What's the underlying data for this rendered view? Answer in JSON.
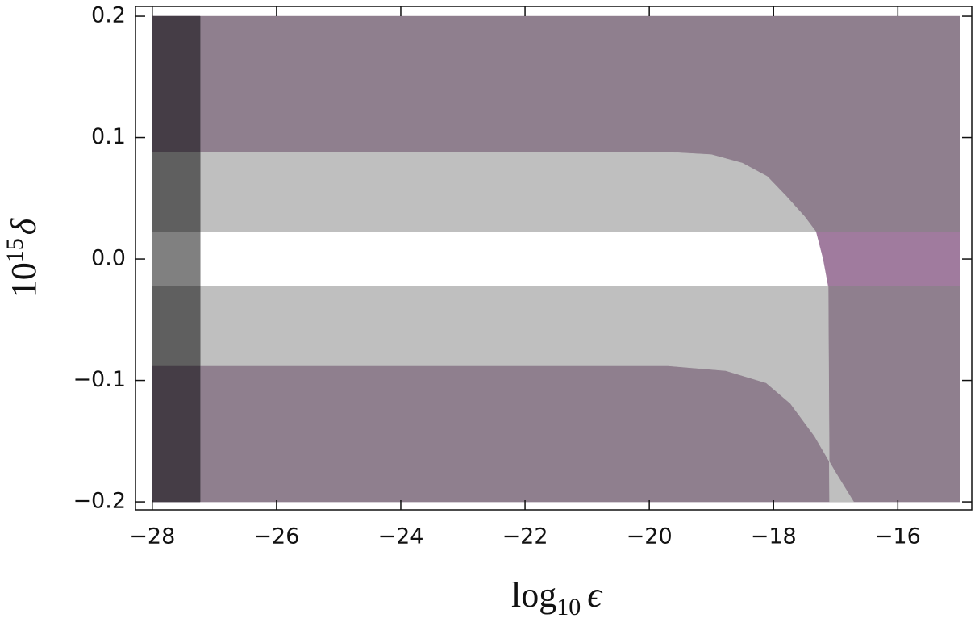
{
  "chart_data": {
    "type": "region",
    "xlabel": [
      "log",
      "10",
      "ϵ"
    ],
    "ylabel": [
      "10",
      "15",
      "δ"
    ],
    "xlim": [
      -28.27,
      -14.81
    ],
    "ylim": [
      -0.2066,
      0.208
    ],
    "xticks": [
      {
        "value": -28,
        "label": "−28"
      },
      {
        "value": -26,
        "label": "−26"
      },
      {
        "value": -24,
        "label": "−24"
      },
      {
        "value": -22,
        "label": "−22"
      },
      {
        "value": -20,
        "label": "−20"
      },
      {
        "value": -18,
        "label": "−18"
      },
      {
        "value": -16,
        "label": "−16"
      }
    ],
    "yticks": [
      0.2,
      0.1,
      {
        "value": 0,
        "label": "0.0"
      },
      {
        "value": -0.1,
        "label": "−0.1"
      },
      {
        "value": -0.2,
        "label": "−0.2"
      }
    ],
    "regions": [
      {
        "color": "#8f7f8e",
        "x": [
          -28,
          -15,
          -15,
          -28
        ],
        "y": [
          -0.2,
          -0.2,
          0.2,
          0.2
        ]
      },
      {
        "color": "#bfbfbf",
        "x": [
          -27.23,
          -19.7,
          -19,
          -18.5,
          -18.1,
          -17.8,
          -17.5,
          -17.31,
          -17.2,
          -17.12,
          -17.1,
          -16.71,
          -17.01,
          -17.34,
          -17.73,
          -18.12,
          -18.77,
          -19.7,
          -27.23
        ],
        "y": [
          0.088,
          0.088,
          0.086,
          0.079,
          0.068,
          0.052,
          0.035,
          0.022,
          0,
          -0.022,
          -0.2,
          -0.2,
          -0.175,
          -0.146,
          -0.119,
          -0.102,
          -0.092,
          -0.088,
          -0.088
        ]
      },
      {
        "color": "#ffffff",
        "x": [
          -27.23,
          -17.31,
          -17.2,
          -17.12,
          -27.23
        ],
        "y": [
          0.022,
          0.022,
          0,
          -0.022,
          -0.022
        ]
      },
      {
        "color": "#a07b9e",
        "x": [
          -17.31,
          -15,
          -15,
          -17.12,
          -17.2
        ],
        "y": [
          0.022,
          0.022,
          -0.022,
          -0.022,
          0
        ]
      },
      {
        "color": "#453d46",
        "x": [
          -28,
          -27.23,
          -27.23,
          -28
        ],
        "y": [
          -0.2,
          -0.2,
          0.2,
          0.2
        ]
      },
      {
        "color": "#5f5f5f",
        "x": [
          -28,
          -27.23,
          -27.23,
          -28
        ],
        "y": [
          -0.088,
          -0.088,
          0.088,
          0.088
        ]
      },
      {
        "color": "#808080",
        "x": [
          -28,
          -27.23,
          -27.23,
          -28
        ],
        "y": [
          -0.022,
          -0.022,
          0.022,
          0.022
        ]
      }
    ]
  }
}
